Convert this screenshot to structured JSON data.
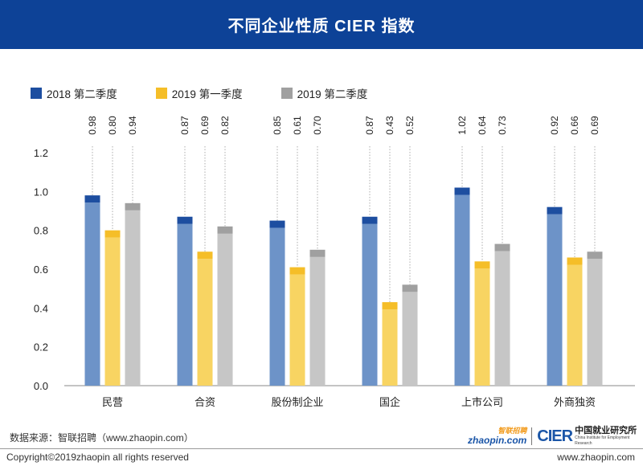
{
  "header": {
    "title": "不同企业性质 CIER 指数"
  },
  "legend": [
    {
      "label": "2018 第二季度",
      "color": "#1d4ea0"
    },
    {
      "label": "2019 第一季度",
      "color": "#f5be28"
    },
    {
      "label": "2019 第二季度",
      "color": "#a0a0a0"
    }
  ],
  "chart_data": {
    "type": "bar",
    "categories": [
      "民营",
      "合资",
      "股份制企业",
      "国企",
      "上市公司",
      "外商独资"
    ],
    "series": [
      {
        "name": "2018 第二季度",
        "values": [
          0.98,
          0.87,
          0.85,
          0.87,
          1.02,
          0.92
        ],
        "color": "#1d4ea0",
        "light": "#6d93c8"
      },
      {
        "name": "2019 第一季度",
        "values": [
          0.8,
          0.69,
          0.61,
          0.43,
          0.64,
          0.66
        ],
        "color": "#f5be28",
        "light": "#f8d462"
      },
      {
        "name": "2019 第二季度",
        "values": [
          0.94,
          0.82,
          0.7,
          0.52,
          0.73,
          0.69
        ],
        "color": "#a0a0a0",
        "light": "#c6c6c6"
      }
    ],
    "labels": [
      [
        "0.98",
        "0.80",
        "0.94"
      ],
      [
        "0.87",
        "0.69",
        "0.82"
      ],
      [
        "0.85",
        "0.61",
        "0.70"
      ],
      [
        "0.87",
        "0.43",
        "0.52"
      ],
      [
        "1.02",
        "0.64",
        "0.73"
      ],
      [
        "0.92",
        "0.66",
        "0.69"
      ]
    ],
    "yticks": [
      "0.0",
      "0.2",
      "0.4",
      "0.6",
      "0.8",
      "1.0",
      "1.2"
    ],
    "ylim": [
      0,
      1.2
    ],
    "legend_position": "top-left",
    "grid": false
  },
  "footer": {
    "source": "数据来源：智联招聘（www.zhaopin.com）",
    "copyright": "Copyright©2019zhaopin all rights reserved",
    "site": "www.zhaopin.com"
  },
  "logo": {
    "zhaopin_text": "zhaopin.com",
    "zhaopin_cn": "智联招聘",
    "cier": "CIER",
    "cn_name": "中国就业研究所",
    "en_name": "China Institute for Employment Research"
  }
}
